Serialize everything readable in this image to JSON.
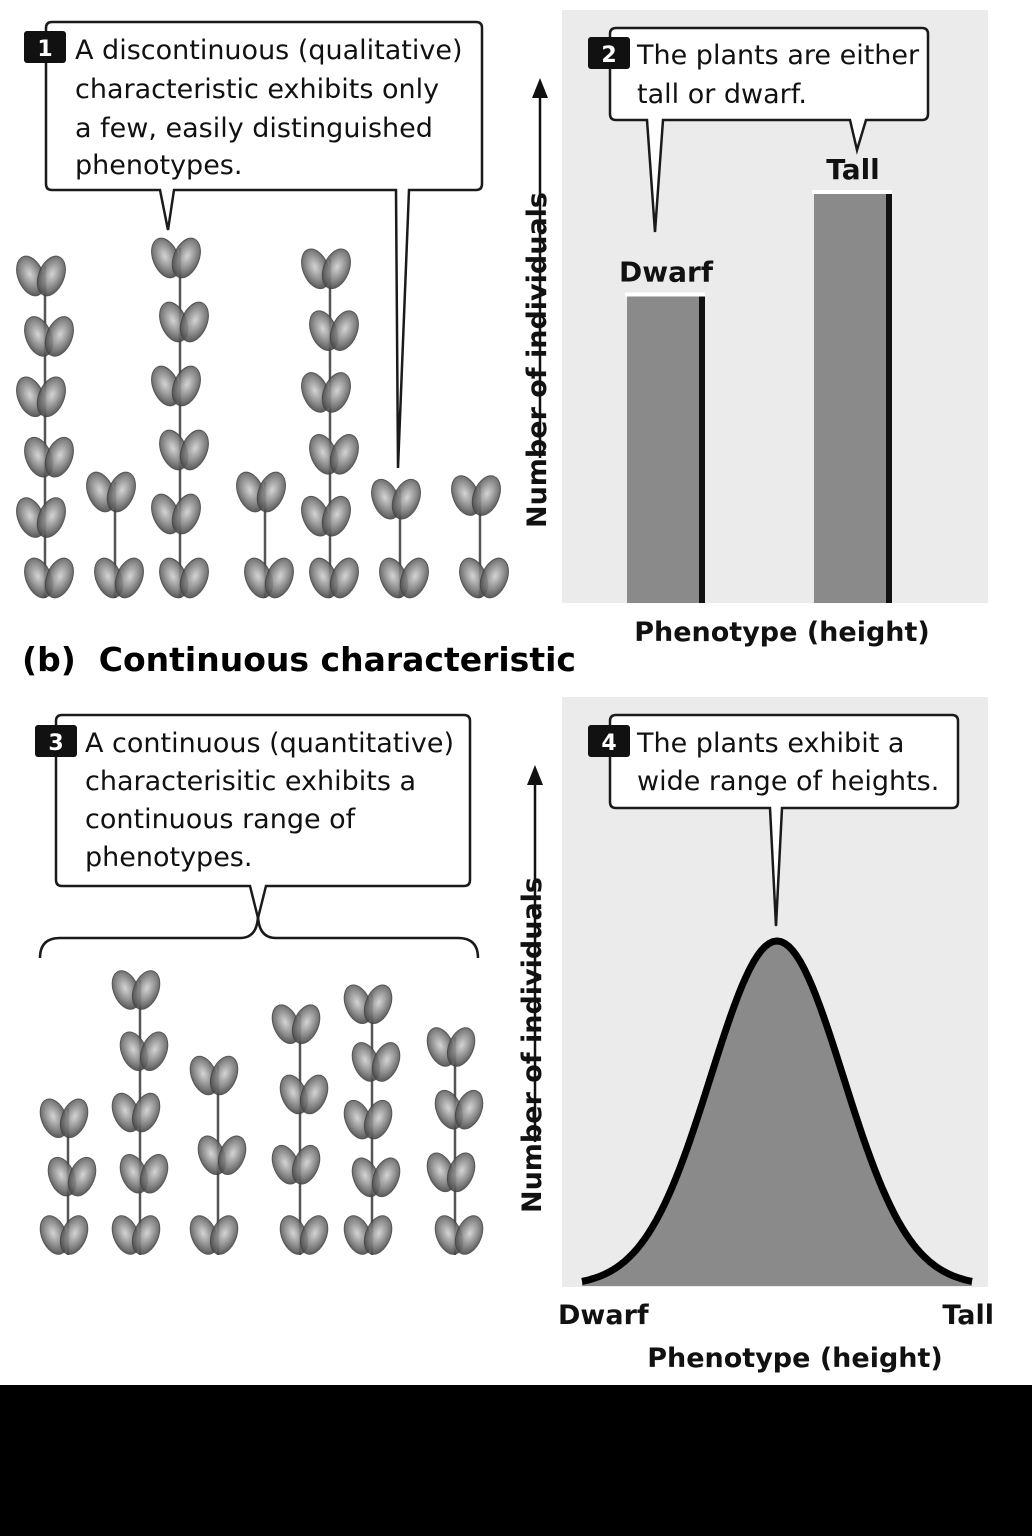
{
  "panel_a": {
    "callout_1": {
      "number": "1",
      "lines": [
        "A discontinuous (qualitative)",
        "characteristic exhibits only",
        "a few, easily distinguished",
        "phenotypes."
      ]
    },
    "callout_2": {
      "number": "2",
      "lines": [
        "The plants are either",
        "tall or dwarf."
      ]
    },
    "y_axis_label": "Number of individuals",
    "x_axis_label": "Phenotype (height)"
  },
  "panel_b": {
    "title": "(b)  Continuous characteristic",
    "callout_3": {
      "number": "3",
      "lines": [
        "A continuous (quantitative)",
        "characterisitic exhibits a",
        "continuous range of",
        "phenotypes."
      ]
    },
    "callout_4": {
      "number": "4",
      "lines": [
        "The plants exhibit a",
        "wide range of heights."
      ]
    },
    "y_axis_label": "Number of individuals",
    "x_axis_label": "Phenotype (height)",
    "x_tick_left": "Dwarf",
    "x_tick_right": "Tall"
  },
  "chart_data": [
    {
      "type": "bar",
      "categories": [
        "Dwarf",
        "Tall"
      ],
      "values": [
        0.75,
        1.0
      ],
      "xlabel": "Phenotype (height)",
      "ylabel": "Number of individuals",
      "colors": {
        "bar": "#8a8a8a",
        "background": "#ebebeb"
      }
    },
    {
      "type": "area",
      "x": [
        0,
        0.1,
        0.2,
        0.3,
        0.4,
        0.5,
        0.6,
        0.7,
        0.8,
        0.9,
        1.0
      ],
      "values": [
        0.0,
        0.04,
        0.16,
        0.44,
        0.81,
        1.0,
        0.81,
        0.44,
        0.16,
        0.04,
        0.0
      ],
      "xlabel": "Phenotype (height)",
      "ylabel": "Number of individuals",
      "x_tick_labels": [
        "Dwarf",
        "Tall"
      ],
      "colors": {
        "fill": "#8a8a8a",
        "background": "#ebebeb"
      }
    }
  ],
  "plants_a": [
    {
      "kind": "tall",
      "height": 0.95
    },
    {
      "kind": "dwarf",
      "height": 0.35
    },
    {
      "kind": "tall",
      "height": 1.0
    },
    {
      "kind": "dwarf",
      "height": 0.35
    },
    {
      "kind": "tall",
      "height": 0.97
    },
    {
      "kind": "dwarf",
      "height": 0.33
    },
    {
      "kind": "dwarf",
      "height": 0.34
    }
  ],
  "plants_b": [
    {
      "height": 0.55
    },
    {
      "height": 1.0
    },
    {
      "height": 0.7
    },
    {
      "height": 0.88
    },
    {
      "height": 0.95
    },
    {
      "height": 0.8
    }
  ]
}
